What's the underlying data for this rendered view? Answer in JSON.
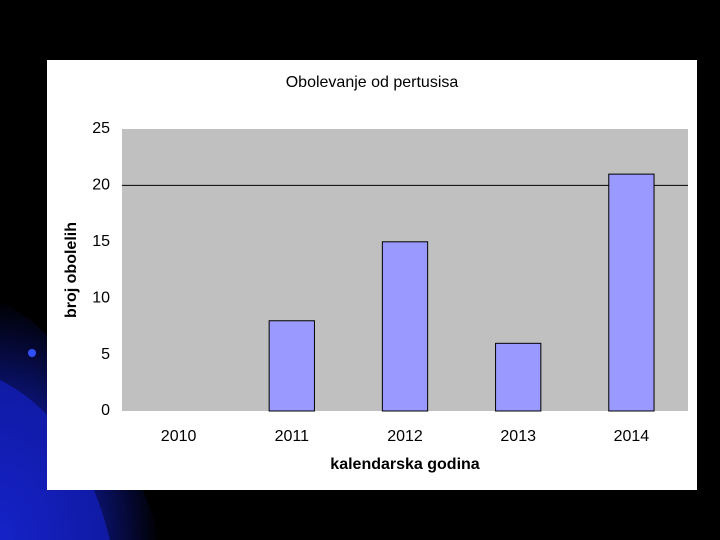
{
  "chart_data": {
    "type": "bar",
    "title": "Obolevanje od pertusisa",
    "x_label": "kalendarska godina",
    "y_label": "broj obolelih",
    "categories": [
      "2010",
      "2011",
      "2012",
      "2013",
      "2014"
    ],
    "values": [
      0,
      8,
      15,
      6,
      21
    ],
    "color": "#9999ff",
    "ylim": [
      0,
      25
    ],
    "yticks": [
      0,
      5,
      10,
      15,
      20,
      25
    ],
    "grid_lines": [
      20
    ]
  }
}
